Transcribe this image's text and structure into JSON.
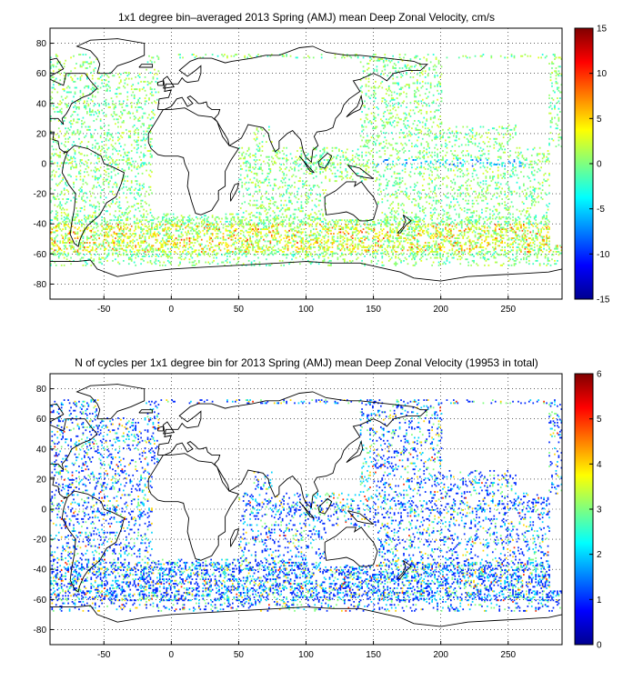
{
  "charts": [
    {
      "title": "1x1 degree bin–averaged 2013 Spring (AMJ) mean Deep Zonal Velocity, cm/s",
      "x_ticks": [
        "-50",
        "0",
        "50",
        "100",
        "150",
        "200",
        "250"
      ],
      "y_ticks": [
        "80",
        "60",
        "40",
        "20",
        "0",
        "-20",
        "-40",
        "-60",
        "-80"
      ],
      "cb_ticks": [
        "15",
        "10",
        "5",
        "0",
        "-5",
        "-10",
        "-15"
      ]
    },
    {
      "title": "N of cycles per 1x1 degree bin for 2013 Spring (AMJ) mean Deep Zonal Velocity (19953 in total)",
      "x_ticks": [
        "-50",
        "0",
        "50",
        "100",
        "150",
        "200",
        "250"
      ],
      "y_ticks": [
        "80",
        "60",
        "40",
        "20",
        "0",
        "-20",
        "-40",
        "-60",
        "-80"
      ],
      "cb_ticks": [
        "6",
        "5",
        "4",
        "3",
        "2",
        "1",
        "0"
      ]
    }
  ],
  "chart_data": [
    {
      "type": "heatmap",
      "title": "1x1 degree bin–averaged 2013 Spring (AMJ) mean Deep Zonal Velocity, cm/s",
      "xlim": [
        -90,
        290
      ],
      "ylim": [
        -90,
        90
      ],
      "x_ticks": [
        -50,
        0,
        50,
        100,
        150,
        200,
        250
      ],
      "y_ticks": [
        80,
        60,
        40,
        20,
        0,
        -20,
        -40,
        -60,
        -80
      ],
      "grid": true,
      "colorbar": {
        "range": [
          -15,
          15
        ],
        "ticks": [
          15,
          10,
          5,
          0,
          -5,
          -10,
          -15
        ],
        "colormap": "jet"
      },
      "cell_size_deg": 1
    },
    {
      "type": "heatmap",
      "title": "N of cycles per 1x1 degree bin for 2013 Spring (AMJ) mean Deep Zonal Velocity (19953 in total)",
      "xlim": [
        -90,
        290
      ],
      "ylim": [
        -90,
        90
      ],
      "x_ticks": [
        -50,
        0,
        50,
        100,
        150,
        200,
        250
      ],
      "y_ticks": [
        80,
        60,
        40,
        20,
        0,
        -20,
        -40,
        -60,
        -80
      ],
      "grid": true,
      "total_cycles": 19953,
      "colorbar": {
        "range": [
          0,
          6
        ],
        "ticks": [
          6,
          5,
          4,
          3,
          2,
          1,
          0
        ],
        "colormap": "jet"
      },
      "cell_size_deg": 1
    }
  ]
}
